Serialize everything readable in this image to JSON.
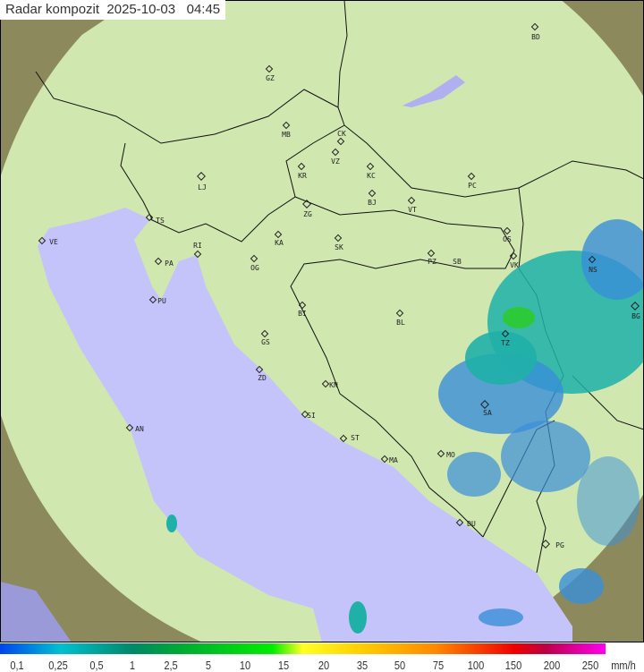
{
  "title": "Radar kompozit  2025-10-03   04:45",
  "colors": {
    "sea": "#c4c4fa",
    "coverage": "#d8f0b8",
    "outside": "#8c8a5c",
    "echo_blue": "#3a8fd8",
    "echo_teal": "#1fb0a8",
    "echo_green": "#2ec93a"
  },
  "cities": [
    "BD",
    "GZ",
    "MB",
    "CK",
    "VZ",
    "KR",
    "KC",
    "PC",
    "LJ",
    "BJ",
    "VT",
    "ZG",
    "TS",
    "VE",
    "RI",
    "KA",
    "SK",
    "OS",
    "PA",
    "OG",
    "PZ",
    "SB",
    "VK",
    "NS",
    "PU",
    "BI",
    "BL",
    "BG",
    "TZ",
    "GS",
    "ZD",
    "KN",
    "SA",
    "SI",
    "AN",
    "ST",
    "MO",
    "MA",
    "DU",
    "PG"
  ],
  "legend": {
    "unit": "mm/h",
    "labels": [
      "0,1",
      "0,25",
      "0,5",
      "1",
      "2,5",
      "5",
      "10",
      "15",
      "20",
      "35",
      "50",
      "75",
      "100",
      "150",
      "200",
      "250"
    ]
  }
}
